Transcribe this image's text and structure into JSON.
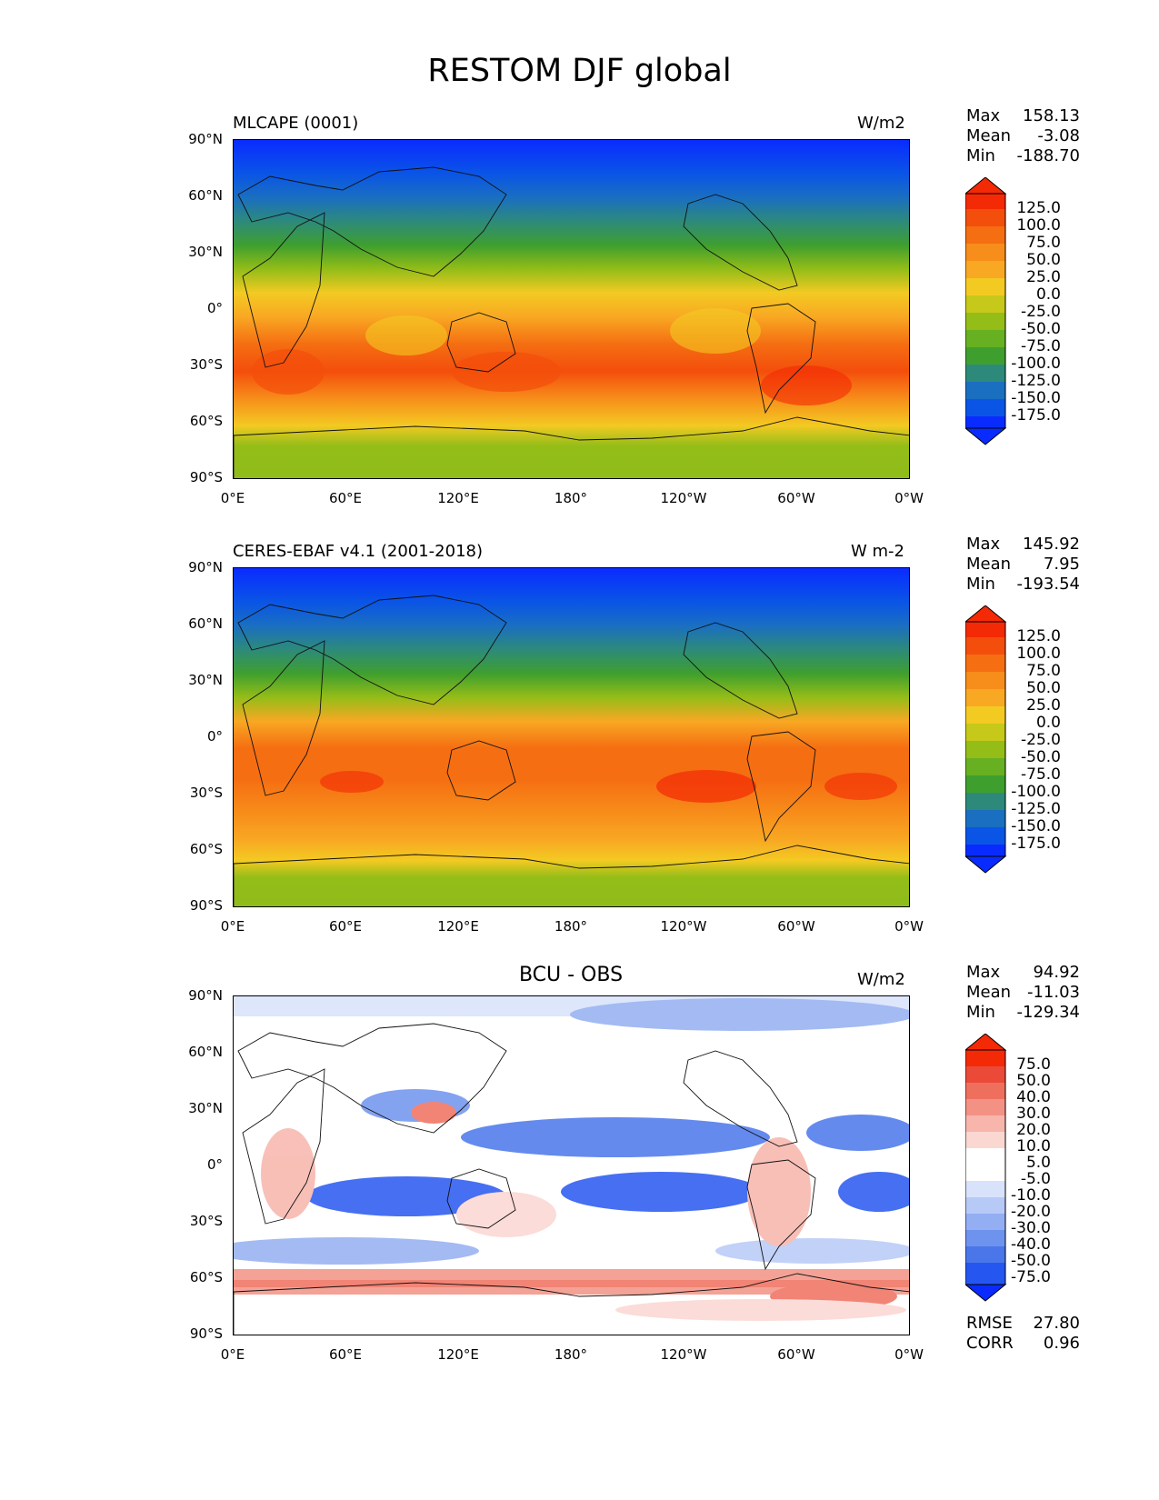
{
  "figure_title": "RESTOM DJF global",
  "lon_ticks": [
    "0°E",
    "60°E",
    "120°E",
    "180°",
    "120°W",
    "60°W",
    "0°W"
  ],
  "lat_ticks": [
    "90°N",
    "60°N",
    "30°N",
    "0°",
    "30°S",
    "60°S",
    "90°S"
  ],
  "colors": {
    "blue_ramp": [
      "#0a2bff",
      "#0a55e6",
      "#1a6fc0",
      "#2d8a7a",
      "#3f9f2e",
      "#67b022",
      "#94bd18",
      "#c6c81a",
      "#f3ca22",
      "#f8a823",
      "#f78d1a",
      "#f56e12",
      "#f44e0c",
      "#f32a05"
    ],
    "diff_ramp": [
      "#0a2bff",
      "#2656f0",
      "#4a76ea",
      "#6e93ee",
      "#93aef2",
      "#b7c9f6",
      "#d8e2fa",
      "#ffffff",
      "#ffffff",
      "#fbd7d2",
      "#f7b5ab",
      "#f39284",
      "#ef6f5e",
      "#eb4a38",
      "#f32a05"
    ]
  },
  "panels": [
    {
      "title": "MLCAPE (0001)",
      "title_position": "left",
      "units": "W/m2",
      "stats": {
        "max_label": "Max",
        "max": "158.13",
        "mean_label": "Mean",
        "mean": "-3.08",
        "min_label": "Min",
        "min": "-188.70"
      },
      "colorbar_labels": [
        "125.0",
        "100.0",
        "75.0",
        "50.0",
        "25.0",
        "0.0",
        "-25.0",
        "-50.0",
        "-75.0",
        "-100.0",
        "-125.0",
        "-150.0",
        "-175.0"
      ],
      "colormap": "blue_ramp"
    },
    {
      "title": "CERES-EBAF v4.1 (2001-2018)",
      "title_position": "left",
      "units": "W m-2",
      "stats": {
        "max_label": "Max",
        "max": "145.92",
        "mean_label": "Mean",
        "mean": "7.95",
        "min_label": "Min",
        "min": "-193.54"
      },
      "colorbar_labels": [
        "125.0",
        "100.0",
        "75.0",
        "50.0",
        "25.0",
        "0.0",
        "-25.0",
        "-50.0",
        "-75.0",
        "-100.0",
        "-125.0",
        "-150.0",
        "-175.0"
      ],
      "colormap": "blue_ramp"
    },
    {
      "title": "BCU - OBS",
      "title_position": "center",
      "units": "W/m2",
      "stats": {
        "max_label": "Max",
        "max": "94.92",
        "mean_label": "Mean",
        "mean": "-11.03",
        "min_label": "Min",
        "min": "-129.34"
      },
      "colorbar_labels": [
        "75.0",
        "50.0",
        "40.0",
        "30.0",
        "20.0",
        "10.0",
        "5.0",
        "-5.0",
        "-10.0",
        "-20.0",
        "-30.0",
        "-40.0",
        "-50.0",
        "-75.0"
      ],
      "colormap": "diff_ramp",
      "extra_stats": {
        "rmse_label": "RMSE",
        "rmse": "27.80",
        "corr_label": "CORR",
        "corr": "0.96"
      }
    }
  ]
}
